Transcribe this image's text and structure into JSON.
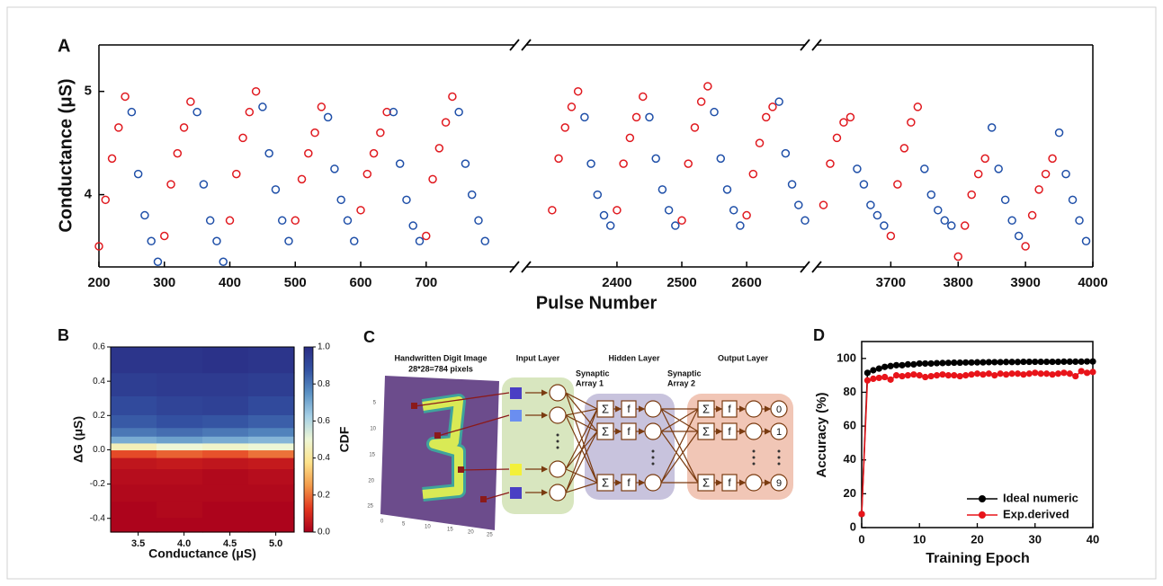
{
  "chart_data": [
    {
      "type": "scatter",
      "label": "A",
      "x_label": "Pulse Number",
      "y_label": "Conductance (μS)",
      "segments": [
        {
          "xlim": [
            200,
            835
          ],
          "xticks": [
            200,
            300,
            400,
            500,
            600,
            700
          ]
        },
        {
          "xlim": [
            2260,
            2690
          ],
          "xticks": [
            2400,
            2500,
            2600
          ]
        },
        {
          "xlim": [
            3590,
            4000
          ],
          "xticks": [
            3700,
            3800,
            3900,
            4000
          ]
        }
      ],
      "ylim": [
        3.3,
        5.45
      ],
      "yticks": [
        4,
        5
      ],
      "series": [
        {
          "color": "#e0191f",
          "x": [
            200,
            210,
            220,
            230,
            240,
            300,
            310,
            320,
            330,
            340,
            400,
            410,
            420,
            430,
            440,
            500,
            510,
            520,
            530,
            540,
            600,
            610,
            620,
            630,
            640,
            700,
            710,
            720,
            730,
            740,
            2300,
            2310,
            2320,
            2330,
            2340,
            2400,
            2410,
            2420,
            2430,
            2440,
            2500,
            2510,
            2520,
            2530,
            2540,
            2600,
            2610,
            2620,
            2630,
            2640,
            3600,
            3610,
            3620,
            3630,
            3640,
            3700,
            3710,
            3720,
            3730,
            3740,
            3800,
            3810,
            3820,
            3830,
            3840,
            3900,
            3910,
            3920,
            3930,
            3940
          ],
          "values": [
            3.5,
            3.95,
            4.35,
            4.65,
            4.95,
            3.6,
            4.1,
            4.4,
            4.65,
            4.9,
            3.75,
            4.2,
            4.55,
            4.8,
            5.0,
            3.75,
            4.15,
            4.4,
            4.6,
            4.85,
            3.85,
            4.2,
            4.4,
            4.6,
            4.8,
            3.6,
            4.15,
            4.45,
            4.7,
            4.95,
            3.85,
            4.35,
            4.65,
            4.85,
            5.0,
            3.85,
            4.3,
            4.55,
            4.75,
            4.95,
            3.75,
            4.3,
            4.65,
            4.9,
            5.05,
            3.8,
            4.2,
            4.5,
            4.75,
            4.85,
            3.9,
            4.3,
            4.55,
            4.7,
            4.75,
            3.6,
            4.1,
            4.45,
            4.7,
            4.85,
            3.4,
            3.7,
            4.0,
            4.2,
            4.35,
            3.5,
            3.8,
            4.05,
            4.2,
            4.35
          ]
        },
        {
          "color": "#1f4fa8",
          "x": [
            250,
            260,
            270,
            280,
            290,
            350,
            360,
            370,
            380,
            390,
            450,
            460,
            470,
            480,
            490,
            550,
            560,
            570,
            580,
            590,
            650,
            660,
            670,
            680,
            690,
            750,
            760,
            770,
            780,
            790,
            2350,
            2360,
            2370,
            2380,
            2390,
            2450,
            2460,
            2470,
            2480,
            2490,
            2550,
            2560,
            2570,
            2580,
            2590,
            2650,
            2660,
            2670,
            2680,
            2690,
            3650,
            3660,
            3670,
            3680,
            3690,
            3750,
            3760,
            3770,
            3780,
            3790,
            3850,
            3860,
            3870,
            3880,
            3890,
            3950,
            3960,
            3970,
            3980,
            3990
          ],
          "values": [
            4.8,
            4.2,
            3.8,
            3.55,
            3.35,
            4.8,
            4.1,
            3.75,
            3.55,
            3.35,
            4.85,
            4.4,
            4.05,
            3.75,
            3.55,
            4.75,
            4.25,
            3.95,
            3.75,
            3.55,
            4.8,
            4.3,
            3.95,
            3.7,
            3.55,
            4.8,
            4.3,
            4.0,
            3.75,
            3.55,
            4.75,
            4.3,
            4.0,
            3.8,
            3.7,
            4.75,
            4.35,
            4.05,
            3.85,
            3.7,
            4.8,
            4.35,
            4.05,
            3.85,
            3.7,
            4.9,
            4.4,
            4.1,
            3.9,
            3.75,
            4.25,
            4.1,
            3.9,
            3.8,
            3.7,
            4.25,
            4.0,
            3.85,
            3.75,
            3.7,
            4.65,
            4.25,
            3.95,
            3.75,
            3.6,
            4.6,
            4.2,
            3.95,
            3.75,
            3.55
          ]
        }
      ]
    },
    {
      "type": "heatmap",
      "label": "B",
      "x_label": "Conductance (μS)",
      "y_label": "ΔG (μS)",
      "colorbar_label": "CDF",
      "xlim": [
        3.2,
        5.2
      ],
      "xticks": [
        3.5,
        {
          "value": 4,
          "label": "4.0"
        },
        4.5,
        {
          "value": 5,
          "label": "5.0"
        }
      ],
      "ylim": [
        -0.48,
        0.6
      ],
      "yticks": [
        -0.4,
        -0.2,
        {
          "value": 0,
          "label": "0.0"
        },
        0.2,
        0.4,
        0.6
      ],
      "clim": [
        0,
        1
      ],
      "cticks": [
        {
          "value": 0,
          "label": "0.0"
        },
        0.2,
        0.4,
        0.6,
        0.8,
        {
          "value": 1,
          "label": "1.0"
        }
      ],
      "colormap": [
        "#a8001c",
        "#e2361f",
        "#f39a4a",
        "#fde28a",
        "#eef7d6",
        "#a6d0e6",
        "#5b92c4",
        "#3352a2",
        "#2a2c84"
      ],
      "x": [
        3.45,
        3.95,
        4.45,
        4.95
      ],
      "y": [
        -0.44,
        -0.35,
        -0.25,
        -0.15,
        -0.07,
        -0.02,
        0.02,
        0.06,
        0.1,
        0.16,
        0.25,
        0.38,
        0.52
      ],
      "z": [
        [
          0.01,
          0.01,
          0.01,
          0.01
        ],
        [
          0.01,
          0.02,
          0.01,
          0.01
        ],
        [
          0.02,
          0.02,
          0.02,
          0.02
        ],
        [
          0.03,
          0.03,
          0.02,
          0.03
        ],
        [
          0.05,
          0.06,
          0.05,
          0.06
        ],
        [
          0.15,
          0.18,
          0.16,
          0.2
        ],
        [
          0.45,
          0.5,
          0.48,
          0.5
        ],
        [
          0.7,
          0.72,
          0.7,
          0.68
        ],
        [
          0.8,
          0.82,
          0.8,
          0.78
        ],
        [
          0.86,
          0.88,
          0.87,
          0.85
        ],
        [
          0.9,
          0.92,
          0.93,
          0.9
        ],
        [
          0.94,
          0.95,
          0.95,
          0.94
        ],
        [
          0.97,
          0.97,
          0.98,
          0.97
        ]
      ]
    },
    {
      "type": "line",
      "label": "D",
      "x_label": "Training Epoch",
      "y_label": "Accuracy (%)",
      "xlim": [
        0,
        40
      ],
      "xticks": [
        0,
        10,
        20,
        30,
        40
      ],
      "ylim": [
        0,
        110
      ],
      "yticks": [
        0,
        20,
        40,
        60,
        80,
        100
      ],
      "legend": "lower right",
      "x": [
        0,
        1,
        2,
        3,
        4,
        5,
        6,
        7,
        8,
        9,
        10,
        11,
        12,
        13,
        14,
        15,
        16,
        17,
        18,
        19,
        20,
        21,
        22,
        23,
        24,
        25,
        26,
        27,
        28,
        29,
        30,
        31,
        32,
        33,
        34,
        35,
        36,
        37,
        38,
        39,
        40
      ],
      "series": [
        {
          "name": "Ideal numeric",
          "color": "#000000",
          "values": [
            8,
            91.5,
            93,
            94,
            95,
            95.5,
            96,
            96,
            96.5,
            96.5,
            97,
            97,
            97,
            97.2,
            97.3,
            97.4,
            97.5,
            97.5,
            97.6,
            97.6,
            97.7,
            97.7,
            97.8,
            97.8,
            97.8,
            97.9,
            97.9,
            97.9,
            98,
            98,
            98,
            98,
            98,
            98,
            98,
            98.1,
            98.1,
            98.1,
            98.1,
            98.2,
            98.2
          ]
        },
        {
          "name": "Exp.derived",
          "color": "#e8141a",
          "values": [
            8,
            87,
            88,
            88.5,
            89,
            87.5,
            90,
            89.5,
            90,
            90.5,
            90,
            89,
            89.5,
            90,
            90.5,
            90,
            90,
            89.5,
            90,
            90.5,
            91,
            90.5,
            91,
            90,
            91,
            90.5,
            91,
            91,
            90.5,
            91,
            91.5,
            91,
            91,
            90.5,
            91,
            91.5,
            91,
            89.5,
            92.5,
            91.5,
            92
          ]
        }
      ]
    }
  ],
  "diagram": {
    "label": "C",
    "image_title": "Handwritten Digit Image",
    "image_subtitle": "28*28=784 pixels",
    "image_yticks": [
      5,
      10,
      15,
      20,
      25
    ],
    "image_xticks": [
      0,
      5,
      10,
      15,
      20,
      25
    ],
    "input_layer": "Input Layer",
    "hidden_layer": "Hidden Layer",
    "output_layer": "Output Layer",
    "synaptic_array_1": [
      "Synaptic",
      "Array 1"
    ],
    "synaptic_array_2": [
      "Synaptic",
      "Array 2"
    ],
    "sum": "Σ",
    "activation": "f",
    "outputs": [
      "0",
      "1",
      "9"
    ]
  }
}
